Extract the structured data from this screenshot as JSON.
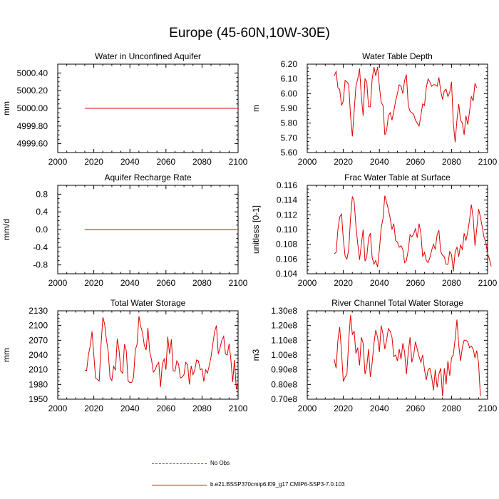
{
  "title": "Europe (45-60N,10W-30E)",
  "colors": {
    "series": "#e00000",
    "axis": "#000000",
    "no_obs": "#5a5ad0"
  },
  "legend": {
    "no_obs_label": "No Obs",
    "series_label": "b.e21.BSSP370cmip6.f09_g17.CMIP6-SSP3-7.0.103"
  },
  "chart_data": [
    {
      "type": "line",
      "title": "Water in Unconfined Aquifer",
      "xlabel": "",
      "ylabel": "mm",
      "xlim": [
        2000,
        2100
      ],
      "ylim": [
        4999.5,
        5000.5
      ],
      "x_ticks": [
        2000,
        2020,
        2040,
        2060,
        2080,
        2100
      ],
      "y_ticks": [
        4999.6,
        4999.8,
        5000.0,
        5000.2,
        5000.4
      ],
      "y_tick_labels": [
        "4999.60",
        "4999.80",
        "5000.00",
        "5000.20",
        "5000.40"
      ],
      "x_start": 2015,
      "series": [
        {
          "name": "b.e21.BSSP370cmip6.f09_g17.CMIP6-SSP3-7.0.103",
          "values": [
            5000,
            5000,
            5000,
            5000,
            5000,
            5000,
            5000,
            5000,
            5000,
            5000,
            5000,
            5000,
            5000,
            5000,
            5000,
            5000,
            5000,
            5000,
            5000,
            5000,
            5000,
            5000,
            5000,
            5000,
            5000,
            5000,
            5000,
            5000,
            5000,
            5000,
            5000,
            5000,
            5000,
            5000,
            5000,
            5000,
            5000,
            5000,
            5000,
            5000,
            5000,
            5000,
            5000,
            5000,
            5000,
            5000,
            5000,
            5000,
            5000,
            5000,
            5000,
            5000,
            5000,
            5000,
            5000,
            5000,
            5000,
            5000,
            5000,
            5000,
            5000,
            5000,
            5000,
            5000,
            5000,
            5000,
            5000,
            5000,
            5000,
            5000,
            5000,
            5000,
            5000,
            5000,
            5000,
            5000,
            5000,
            5000,
            5000,
            5000,
            5000,
            5000,
            5000,
            5000,
            5000,
            5000
          ]
        }
      ]
    },
    {
      "type": "line",
      "title": "Water Table Depth",
      "xlabel": "",
      "ylabel": "m",
      "xlim": [
        2000,
        2100
      ],
      "ylim": [
        5.6,
        6.2
      ],
      "x_ticks": [
        2000,
        2020,
        2040,
        2060,
        2080,
        2100
      ],
      "y_ticks": [
        5.6,
        5.7,
        5.8,
        5.9,
        6.0,
        6.1,
        6.2
      ],
      "y_tick_labels": [
        "5.60",
        "5.70",
        "5.80",
        "5.90",
        "6.00",
        "6.10",
        "6.20"
      ],
      "x_start": 2015,
      "series": [
        {
          "name": "b.e21.BSSP370cmip6.f09_g17.CMIP6-SSP3-7.0.103",
          "values": [
            6.12,
            6.15,
            6.04,
            6.03,
            5.92,
            5.95,
            6.09,
            6.08,
            6.06,
            5.85,
            5.71,
            5.88,
            6.05,
            6.1,
            6.17,
            5.98,
            5.85,
            6.1,
            6.08,
            5.91,
            5.91,
            6.1,
            6.18,
            6.12,
            6.18,
            6.05,
            5.94,
            5.92,
            5.72,
            5.75,
            5.85,
            5.87,
            5.82,
            5.88,
            5.95,
            6.0,
            6.06,
            6.05,
            6.0,
            6.09,
            6.13,
            5.92,
            5.88,
            5.87,
            5.86,
            5.82,
            5.8,
            5.78,
            5.85,
            5.93,
            5.92,
            6.04,
            6.1,
            6.08,
            6.05,
            6.06,
            6.06,
            6.05,
            6.11,
            6.02,
            5.96,
            6.02,
            6.03,
            5.98,
            6.01,
            6.08,
            5.8,
            5.67,
            5.82,
            5.93,
            5.82,
            5.8,
            5.72,
            5.85,
            5.79,
            5.88,
            5.98,
            5.95,
            6.07,
            6.04
          ]
        }
      ]
    },
    {
      "type": "line",
      "title": "Aquifer Recharge Rate",
      "xlabel": "",
      "ylabel": "mm/d",
      "xlim": [
        2000,
        2100
      ],
      "ylim": [
        -1.0,
        1.0
      ],
      "x_ticks": [
        2000,
        2020,
        2040,
        2060,
        2080,
        2100
      ],
      "y_ticks": [
        -0.8,
        -0.4,
        0.0,
        0.4,
        0.8
      ],
      "y_tick_labels": [
        "-0.8",
        "-0.4",
        "0.0",
        "0.4",
        "0.8"
      ],
      "x_start": 2015,
      "series": [
        {
          "name": "b.e21.BSSP370cmip6.f09_g17.CMIP6-SSP3-7.0.103",
          "values": [
            0,
            0,
            0,
            0,
            0,
            0,
            0,
            0,
            0,
            0,
            0,
            0,
            0,
            0,
            0,
            0,
            0,
            0,
            0,
            0,
            0,
            0,
            0,
            0,
            0,
            0,
            0,
            0,
            0,
            0,
            0,
            0,
            0,
            0,
            0,
            0,
            0,
            0,
            0,
            0,
            0,
            0,
            0,
            0,
            0,
            0,
            0,
            0,
            0,
            0,
            0,
            0,
            0,
            0,
            0,
            0,
            0,
            0,
            0,
            0,
            0,
            0,
            0,
            0,
            0,
            0,
            0,
            0,
            0,
            0,
            0,
            0,
            0,
            0,
            0,
            0,
            0,
            0,
            0,
            0,
            0,
            0,
            0,
            0,
            0,
            0
          ]
        }
      ]
    },
    {
      "type": "line",
      "title": "Frac Water Table at Surface",
      "xlabel": "",
      "ylabel": "unitless [0-1]",
      "xlim": [
        2000,
        2100
      ],
      "ylim": [
        0.104,
        0.116
      ],
      "x_ticks": [
        2000,
        2020,
        2040,
        2060,
        2080,
        2100
      ],
      "y_ticks": [
        0.104,
        0.106,
        0.108,
        0.11,
        0.112,
        0.114,
        0.116
      ],
      "y_tick_labels": [
        "0.104",
        "0.106",
        "0.108",
        "0.110",
        "0.112",
        "0.114",
        "0.116"
      ],
      "x_start": 2015,
      "series": [
        {
          "name": "b.e21.BSSP370cmip6.f09_g17.CMIP6-SSP3-7.0.103",
          "values": [
            0.1067,
            0.1069,
            0.11,
            0.1117,
            0.1121,
            0.1087,
            0.1064,
            0.106,
            0.1073,
            0.1115,
            0.1145,
            0.1138,
            0.1105,
            0.1081,
            0.1059,
            0.108,
            0.11,
            0.1057,
            0.1063,
            0.1088,
            0.1095,
            0.1062,
            0.1053,
            0.1058,
            0.1049,
            0.1073,
            0.1102,
            0.1115,
            0.1146,
            0.1137,
            0.1127,
            0.1115,
            0.11,
            0.1108,
            0.1085,
            0.1083,
            0.1076,
            0.1078,
            0.1073,
            0.1055,
            0.1058,
            0.1072,
            0.1093,
            0.109,
            0.1094,
            0.1101,
            0.1089,
            0.1108,
            0.1095,
            0.1063,
            0.1069,
            0.1058,
            0.1055,
            0.1062,
            0.1072,
            0.108,
            0.1073,
            0.1093,
            0.1099,
            0.107,
            0.1065,
            0.1063,
            0.1053,
            0.1053,
            0.107,
            0.1066,
            0.1043,
            0.107,
            0.1076,
            0.1063,
            0.1079,
            0.1073,
            0.1095,
            0.1085,
            0.1097,
            0.1113,
            0.1134,
            0.1116,
            0.1078,
            0.1101,
            0.1128,
            0.1117,
            0.1104,
            0.109,
            0.1083,
            0.1067,
            0.106,
            0.105
          ]
        }
      ]
    },
    {
      "type": "line",
      "title": "Total Water Storage",
      "xlabel": "",
      "ylabel": "mm",
      "xlim": [
        2000,
        2100
      ],
      "ylim": [
        1950,
        2130
      ],
      "x_ticks": [
        2000,
        2020,
        2040,
        2060,
        2080,
        2100
      ],
      "y_ticks": [
        1950,
        1980,
        2010,
        2040,
        2070,
        2100,
        2130
      ],
      "y_tick_labels": [
        "1950",
        "1980",
        "2010",
        "2040",
        "2070",
        "2100",
        "2130"
      ],
      "x_start": 2015,
      "series": [
        {
          "name": "b.e21.BSSP370cmip6.f09_g17.CMIP6-SSP3-7.0.103",
          "values": [
            2009,
            2008,
            2040,
            2058,
            2088,
            2040,
            1993,
            1990,
            1987,
            2060,
            2117,
            2103,
            2071,
            2047,
            1993,
            1988,
            2017,
            2009,
            2073,
            2050,
            2007,
            2003,
            2062,
            2049,
            1987,
            1984,
            1984,
            1994,
            2050,
            2062,
            2119,
            2098,
            2086,
            2060,
            2050,
            2095,
            2047,
            2030,
            2005,
            2010,
            2020,
            2025,
            1975,
            2022,
            2032,
            2010,
            2077,
            2042,
            2072,
            2008,
            2007,
            2028,
            2022,
            1993,
            1995,
            2000,
            2025,
            2020,
            1980,
            2018,
            2000,
            2010,
            2030,
            2028,
            2010,
            2012,
            1986,
            2010,
            2003,
            2018,
            2036,
            2063,
            2088,
            2100,
            2042,
            2055,
            2070,
            2078,
            2042,
            2040,
            2063,
            2030,
            1985,
            2030,
            1970,
            1985
          ]
        }
      ]
    },
    {
      "type": "line",
      "title": "River Channel Total Water Storage",
      "xlabel": "",
      "ylabel": "m3",
      "xlim": [
        2000,
        2100
      ],
      "ylim": [
        70000000.0,
        130000000.0
      ],
      "x_ticks": [
        2000,
        2020,
        2040,
        2060,
        2080,
        2100
      ],
      "y_ticks": [
        70000000.0,
        80000000.0,
        90000000.0,
        100000000.0,
        110000000.0,
        120000000.0,
        130000000.0
      ],
      "y_tick_labels": [
        "0.70e8",
        "0.80e8",
        "0.90e8",
        "1.00e8",
        "1.10e8",
        "1.20e8",
        "1.30e8"
      ],
      "x_start": 2015,
      "series": [
        {
          "name": "b.e21.BSSP370cmip6.f09_g17.CMIP6-SSP3-7.0.103",
          "values": [
            97000000.0,
            91000000.0,
            110000000.0,
            119000000.0,
            102000000.0,
            82000000.0,
            85000000.0,
            87000000.0,
            110000000.0,
            127000000.0,
            114000000.0,
            116000000.0,
            101000000.0,
            105000000.0,
            93000000.0,
            112000000.0,
            108000000.0,
            87000000.0,
            92000000.0,
            104000000.0,
            85000000.0,
            95000000.0,
            108000000.0,
            117000000.0,
            112000000.0,
            102000000.0,
            120000000.0,
            114000000.0,
            104000000.0,
            110000000.0,
            118000000.0,
            116000000.0,
            112000000.0,
            99000000.0,
            100000000.0,
            96000000.0,
            104000000.0,
            97000000.0,
            108000000.0,
            102000000.0,
            87000000.0,
            102000000.0,
            112000000.0,
            95000000.0,
            100000000.0,
            109000000.0,
            104000000.0,
            99000000.0,
            95000000.0,
            100000000.0,
            90000000.0,
            83000000.0,
            90000000.0,
            91000000.0,
            85000000.0,
            76000000.0,
            90000000.0,
            78000000.0,
            87000000.0,
            91000000.0,
            72000000.0,
            91000000.0,
            80000000.0,
            96000000.0,
            86000000.0,
            98000000.0,
            100000000.0,
            111000000.0,
            124000000.0,
            107000000.0,
            96000000.0,
            105000000.0,
            110000000.0,
            110000000.0,
            109000000.0,
            105000000.0,
            106000000.0,
            104000000.0,
            98000000.0,
            103000000.0,
            94000000.0,
            72000000.0
          ]
        }
      ]
    }
  ]
}
